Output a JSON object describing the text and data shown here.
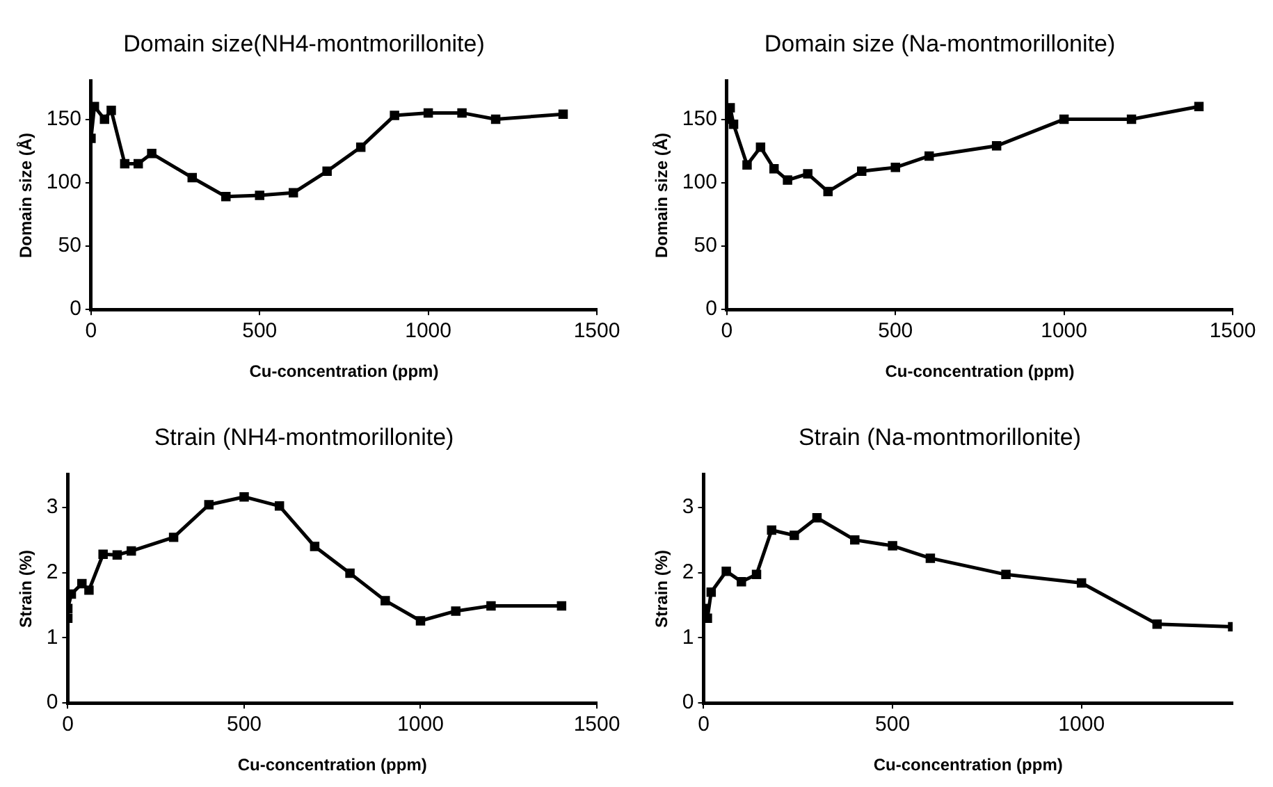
{
  "chart_data": [
    {
      "type": "line",
      "title": "Domain size(NH4-montmorillonite)",
      "xlabel": "Cu-concentration (ppm)",
      "ylabel": "Domain size (Å)",
      "xlim": [
        0,
        1500
      ],
      "xticks": [
        0,
        500,
        1000,
        1500
      ],
      "ylim": [
        0,
        180
      ],
      "yticks": [
        0,
        50,
        100,
        150
      ],
      "grid": false,
      "legend": false,
      "marker": "square",
      "line_style": "solid",
      "series": [
        {
          "color": "#000000",
          "x": [
            0,
            10,
            40,
            60,
            100,
            140,
            180,
            300,
            400,
            500,
            600,
            700,
            800,
            900,
            1000,
            1100,
            1200,
            1400
          ],
          "values": [
            135,
            160,
            150,
            157,
            115,
            115,
            123,
            104,
            89,
            90,
            92,
            109,
            128,
            153,
            155,
            155,
            150,
            154
          ]
        }
      ]
    },
    {
      "type": "line",
      "title": "Domain size (Na-montmorillonite)",
      "xlabel": "Cu-concentration (ppm)",
      "ylabel": "Domain size (Å)",
      "xlim": [
        0,
        1500
      ],
      "xticks": [
        0,
        500,
        1000,
        1500
      ],
      "ylim": [
        0,
        180
      ],
      "yticks": [
        0,
        50,
        100,
        150
      ],
      "grid": false,
      "legend": false,
      "marker": "square",
      "line_style": "solid",
      "series": [
        {
          "color": "#000000",
          "x": [
            0,
            10,
            20,
            60,
            100,
            140,
            180,
            240,
            300,
            400,
            500,
            600,
            800,
            1000,
            1200,
            1400
          ],
          "values": [
            150,
            159,
            146,
            114,
            128,
            111,
            102,
            107,
            93,
            109,
            112,
            121,
            129,
            150,
            150,
            160
          ]
        }
      ]
    },
    {
      "type": "line",
      "title": "Strain (NH4-montmorillonite)",
      "xlabel": "Cu-concentration (ppm)",
      "ylabel": "Strain (%)",
      "xlim": [
        0,
        1500
      ],
      "xticks": [
        0,
        500,
        1000,
        1500
      ],
      "ylim": [
        0,
        3.5
      ],
      "yticks": [
        0,
        1,
        2,
        3
      ],
      "grid": false,
      "legend": false,
      "marker": "square",
      "line_style": "solid",
      "series": [
        {
          "color": "#000000",
          "x": [
            0,
            0,
            10,
            40,
            60,
            100,
            140,
            180,
            300,
            400,
            500,
            600,
            700,
            800,
            900,
            1000,
            1100,
            1200,
            1400
          ],
          "values": [
            1.3,
            1.45,
            1.67,
            1.83,
            1.73,
            2.28,
            2.27,
            2.33,
            2.54,
            3.04,
            3.16,
            3.02,
            2.4,
            1.99,
            1.57,
            1.26,
            1.41,
            1.49,
            1.49
          ]
        }
      ]
    },
    {
      "type": "line",
      "title": "Strain (Na-montmorillonite)",
      "xlabel": "Cu-concentration (ppm)",
      "ylabel": "Strain (%)",
      "xlim": [
        0,
        1400
      ],
      "xticks": [
        0,
        500,
        1000
      ],
      "ylim": [
        0,
        3.5
      ],
      "yticks": [
        0,
        1,
        2,
        3
      ],
      "grid": false,
      "legend": false,
      "marker": "square",
      "line_style": "solid",
      "series": [
        {
          "color": "#000000",
          "x": [
            0,
            10,
            20,
            60,
            100,
            140,
            180,
            240,
            300,
            400,
            500,
            600,
            800,
            1000,
            1200,
            1400
          ],
          "values": [
            1.45,
            1.3,
            1.7,
            2.02,
            1.86,
            1.97,
            2.65,
            2.57,
            2.84,
            2.5,
            2.41,
            2.22,
            1.97,
            1.84,
            1.21,
            1.17
          ]
        }
      ]
    }
  ]
}
